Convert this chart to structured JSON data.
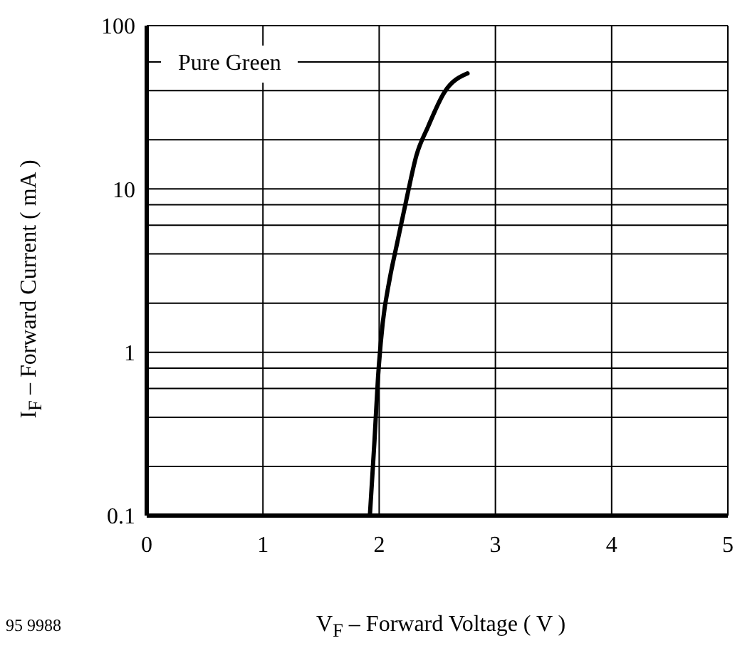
{
  "chart_data": {
    "type": "line",
    "xlabel": "V$_{F}$ – Forward Voltage ( V )",
    "ylabel": "I$_{F}$ – Forward Current ( mA )",
    "annotations": [
      "95 9988"
    ],
    "log": "y",
    "grid": true,
    "legend": "top left",
    "marker": "none",
    "line_style": "solid",
    "xlim": [
      0,
      5
    ],
    "xticks": [
      0,
      1,
      2,
      3,
      4,
      5
    ],
    "ylim": [
      0.1,
      100
    ],
    "yticks": [
      0.1,
      {
        "value": 0.2,
        "label": null
      },
      {
        "value": 0.4,
        "label": null
      },
      {
        "value": 0.6,
        "label": null
      },
      {
        "value": 0.8,
        "label": null
      },
      1,
      {
        "value": 2,
        "label": null
      },
      {
        "value": 4,
        "label": null
      },
      {
        "value": 6,
        "label": null
      },
      {
        "value": 8,
        "label": null
      },
      10,
      {
        "value": 20,
        "label": null
      },
      {
        "value": 40,
        "label": null
      },
      {
        "value": 60,
        "label": null
      },
      100
    ],
    "series": [
      {
        "name": "Pure Green",
        "color": "#000000",
        "x": [
          1.92,
          1.96,
          1.99,
          2.03,
          2.09,
          2.15,
          2.24,
          2.32,
          2.42,
          2.56,
          2.76
        ],
        "values": [
          0.1,
          0.29,
          0.7,
          1.5,
          2.8,
          4.5,
          9,
          16,
          24,
          39,
          51
        ]
      }
    ]
  }
}
